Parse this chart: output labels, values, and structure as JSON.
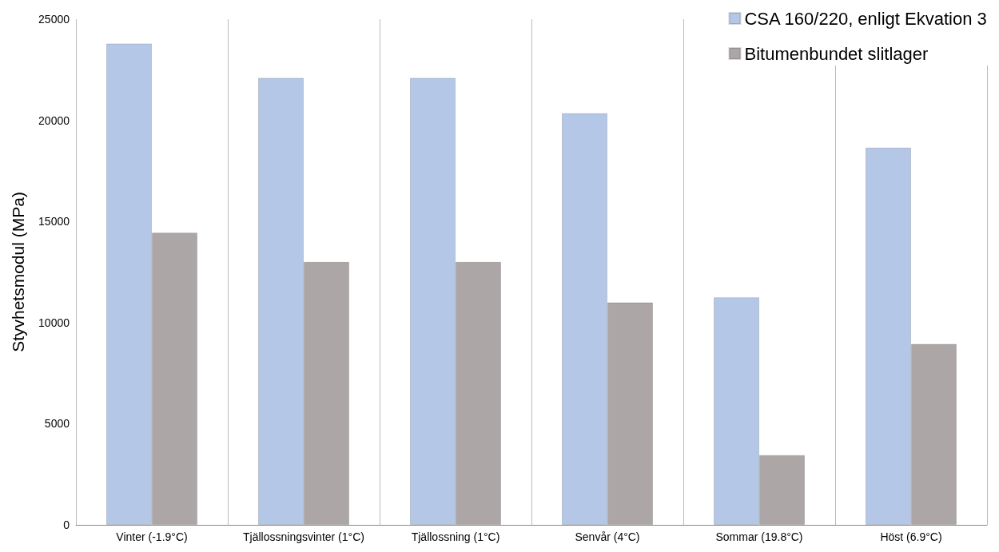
{
  "chart_data": {
    "type": "bar",
    "ylabel": "Styvhetsmodul (MPa)",
    "categories": [
      "Vinter (-1.9°C)",
      "Tjällossningsvinter (1°C)",
      "Tjällossning (1°C)",
      "Senvår (4°C)",
      "Sommar (19.8°C)",
      "Höst (6.9°C)"
    ],
    "series": [
      {
        "name": "CSA 160/220, enligt Ekvation 3",
        "color": "#b4c7e7",
        "values": [
          23800,
          22100,
          22100,
          20350,
          11250,
          18650
        ]
      },
      {
        "name": "Bitumenbundet slitlager",
        "color": "#aca7a6",
        "values": [
          14450,
          13000,
          13000,
          11000,
          3450,
          8950
        ]
      }
    ],
    "ylim": [
      0,
      25000
    ],
    "yticks": [
      0,
      5000,
      10000,
      15000,
      20000,
      25000
    ],
    "grid": "x",
    "legend": "top right"
  }
}
